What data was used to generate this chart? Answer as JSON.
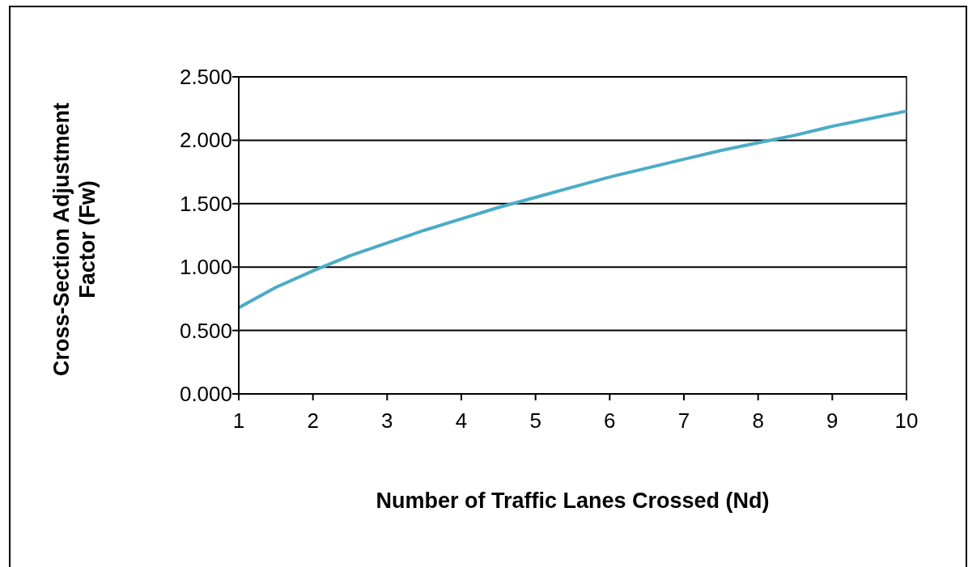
{
  "chart_data": {
    "type": "line",
    "xlabel": "Number of Traffic Lanes Crossed (Nd)",
    "ylabel": "Cross-Section Adjustment Factor (Fw)",
    "x": [
      1,
      1.5,
      2,
      2.5,
      3,
      3.5,
      4,
      4.5,
      5,
      5.5,
      6,
      6.5,
      7,
      7.5,
      8,
      8.5,
      9,
      9.5,
      10
    ],
    "series": [
      {
        "color": "#4bacc6",
        "values": [
          0.68,
          0.84,
          0.97,
          1.09,
          1.19,
          1.29,
          1.38,
          1.47,
          1.55,
          1.63,
          1.71,
          1.78,
          1.85,
          1.92,
          1.98,
          2.04,
          2.11,
          2.17,
          2.23
        ]
      }
    ],
    "xlim": [
      1,
      10
    ],
    "xticks": [
      1,
      2,
      3,
      4,
      5,
      6,
      7,
      8,
      9,
      10
    ],
    "ylim": [
      0,
      2.5
    ],
    "yticks": [
      {
        "value": 0,
        "label": "0.000"
      },
      {
        "value": 0.5,
        "label": "0.500"
      },
      {
        "value": 1,
        "label": "1.000"
      },
      {
        "value": 1.5,
        "label": "1.500"
      },
      {
        "value": 2,
        "label": "2.000"
      },
      {
        "value": 2.5,
        "label": "2.500"
      }
    ],
    "grid": "y",
    "marker": "none",
    "line_style": "solid"
  }
}
